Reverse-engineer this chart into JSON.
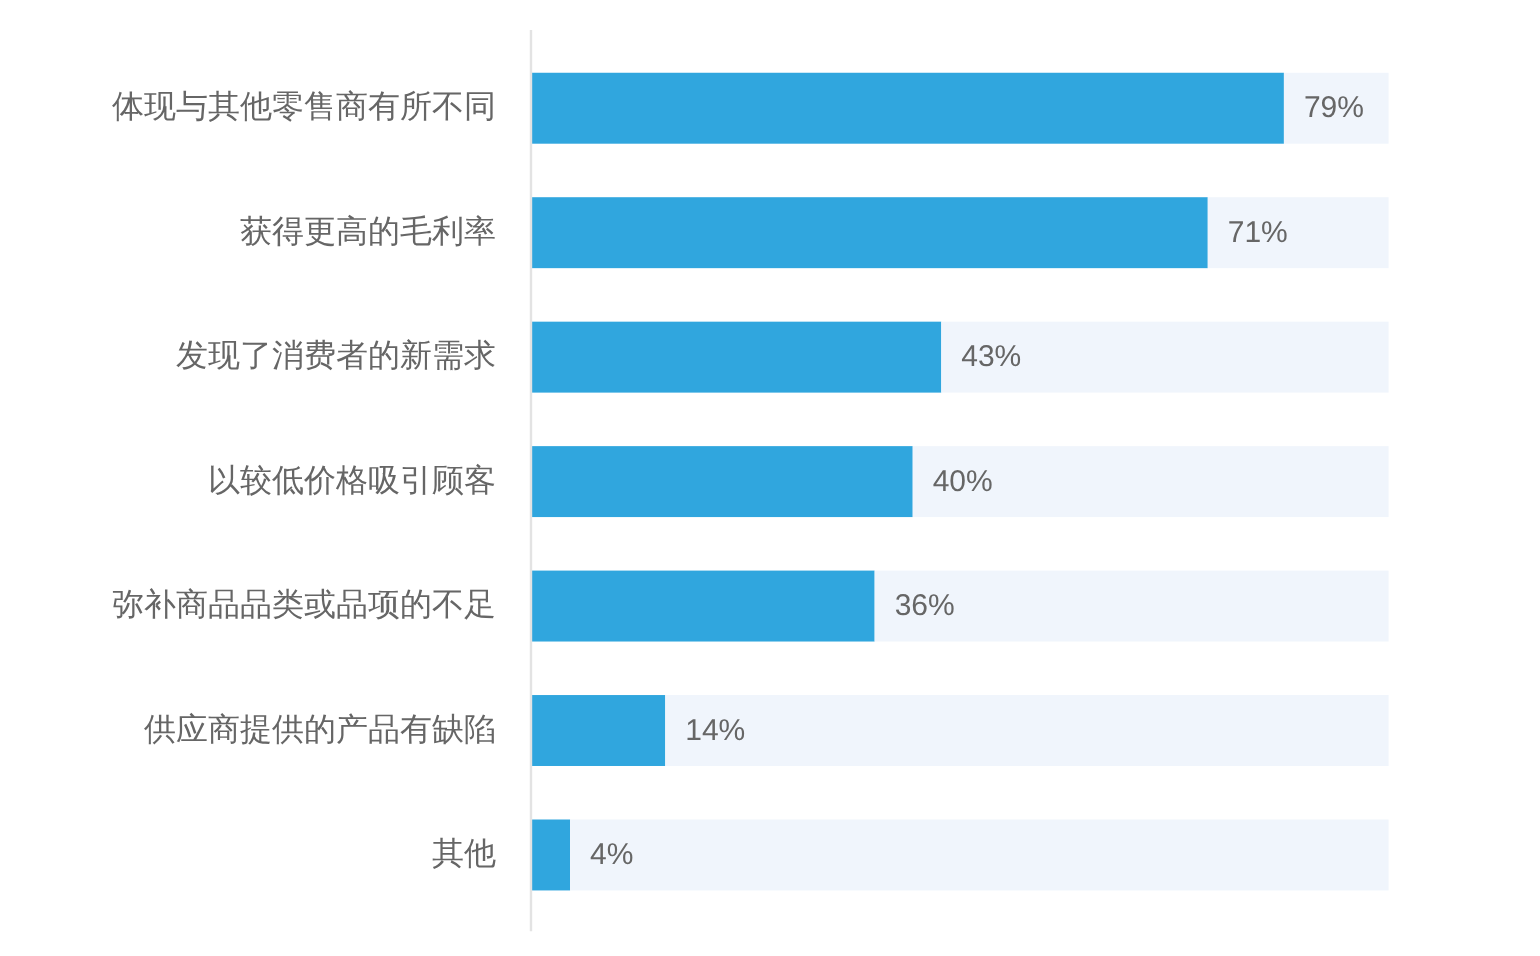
{
  "chart_data": {
    "type": "bar",
    "orientation": "horizontal",
    "stacked": true,
    "categories": [
      "体现与其他零售商有所不同",
      "获得更高的毛利率",
      "发现了消费者的新需求",
      "以较低价格吸引顾客",
      "弥补商品品类或品项的不足",
      "供应商提供的产品有缺陷",
      "其他"
    ],
    "series": [
      {
        "color": "#30a6de",
        "values": [
          79,
          71,
          43,
          40,
          36,
          14,
          4
        ],
        "value_labels": [
          "79%",
          "71%",
          "43%",
          "40%",
          "36%",
          "14%",
          "4%"
        ]
      },
      {
        "color": "#f0f5fc",
        "values": [
          11,
          19,
          47,
          50,
          54,
          76,
          86
        ]
      }
    ],
    "xlim": [
      0,
      90
    ],
    "tick_labels": "y"
  }
}
